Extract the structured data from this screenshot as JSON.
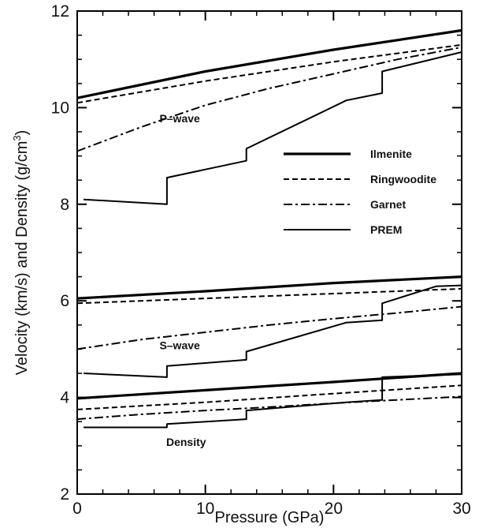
{
  "chart_data": {
    "type": "line",
    "title": "",
    "xlabel": "Pressure (GPa)",
    "ylabel": "Velocity (km/s) and Density (g/cm³)",
    "ylabel_main": "Velocity (km/s) and Density (g/cm",
    "ylabel_sup": "3",
    "ylabel_tail": ")",
    "xlim": [
      0,
      30
    ],
    "ylim": [
      2,
      12
    ],
    "xticks": [
      0,
      10,
      20,
      30
    ],
    "yticks": [
      2,
      4,
      6,
      8,
      10,
      12
    ],
    "grid": false,
    "legend_position": "right",
    "legend": [
      {
        "name": "Ilmenite",
        "style": "thick-solid"
      },
      {
        "name": "Ringwoodite",
        "style": "dashed"
      },
      {
        "name": "Garnet",
        "style": "dash-dot"
      },
      {
        "name": "PREM",
        "style": "thin-solid"
      }
    ],
    "annotations": [
      {
        "text": "P–wave",
        "x": 8,
        "y": 9.7
      },
      {
        "text": "S–wave",
        "x": 8,
        "y": 5.0
      },
      {
        "text": "Density",
        "x": 8.5,
        "y": 3.0
      }
    ],
    "series": [
      {
        "group": "P-wave",
        "style": "thick-solid",
        "x": [
          0,
          10,
          20,
          30
        ],
        "y": [
          10.2,
          10.75,
          11.2,
          11.6
        ]
      },
      {
        "group": "P-wave",
        "style": "dashed",
        "x": [
          0,
          10,
          20,
          30
        ],
        "y": [
          10.1,
          10.55,
          10.95,
          11.3
        ]
      },
      {
        "group": "P-wave",
        "style": "dash-dot",
        "x": [
          0,
          5,
          10,
          15,
          20,
          25,
          30
        ],
        "y": [
          9.1,
          9.6,
          10.05,
          10.4,
          10.7,
          11.0,
          11.25
        ]
      },
      {
        "group": "P-wave",
        "style": "thin-solid",
        "x": [
          0.5,
          7,
          7,
          13.2,
          13.2,
          21,
          23.8,
          23.8,
          30
        ],
        "y": [
          8.1,
          8.0,
          8.55,
          8.9,
          9.15,
          10.15,
          10.3,
          10.75,
          11.15
        ]
      },
      {
        "group": "S-wave",
        "style": "thick-solid",
        "x": [
          0,
          10,
          20,
          30
        ],
        "y": [
          6.05,
          6.2,
          6.37,
          6.5
        ]
      },
      {
        "group": "S-wave",
        "style": "dashed",
        "x": [
          0,
          10,
          20,
          30
        ],
        "y": [
          5.95,
          6.05,
          6.15,
          6.25
        ]
      },
      {
        "group": "S-wave",
        "style": "dash-dot",
        "x": [
          0,
          5,
          10,
          15,
          20,
          25,
          30
        ],
        "y": [
          5.0,
          5.2,
          5.35,
          5.5,
          5.63,
          5.75,
          5.88
        ]
      },
      {
        "group": "S-wave",
        "style": "thin-solid",
        "x": [
          0.5,
          7,
          7,
          13.2,
          13.2,
          21,
          23.8,
          23.8,
          28,
          30
        ],
        "y": [
          4.5,
          4.42,
          4.65,
          4.78,
          4.95,
          5.55,
          5.6,
          5.95,
          6.3,
          6.32
        ]
      },
      {
        "group": "Density",
        "style": "thick-solid",
        "x": [
          0,
          10,
          20,
          30
        ],
        "y": [
          3.98,
          4.15,
          4.32,
          4.5
        ]
      },
      {
        "group": "Density",
        "style": "dashed",
        "x": [
          0,
          10,
          20,
          30
        ],
        "y": [
          3.75,
          3.9,
          4.08,
          4.25
        ]
      },
      {
        "group": "Density",
        "style": "dash-dot",
        "x": [
          0,
          5,
          10,
          15,
          20,
          25,
          30
        ],
        "y": [
          3.55,
          3.65,
          3.73,
          3.8,
          3.88,
          3.95,
          4.02
        ]
      },
      {
        "group": "Density",
        "style": "thin-solid",
        "x": [
          0.5,
          7,
          7,
          13.2,
          13.2,
          21,
          23.8,
          23.8,
          30
        ],
        "y": [
          3.38,
          3.38,
          3.45,
          3.55,
          3.73,
          3.9,
          3.95,
          4.42,
          4.48
        ]
      }
    ]
  }
}
